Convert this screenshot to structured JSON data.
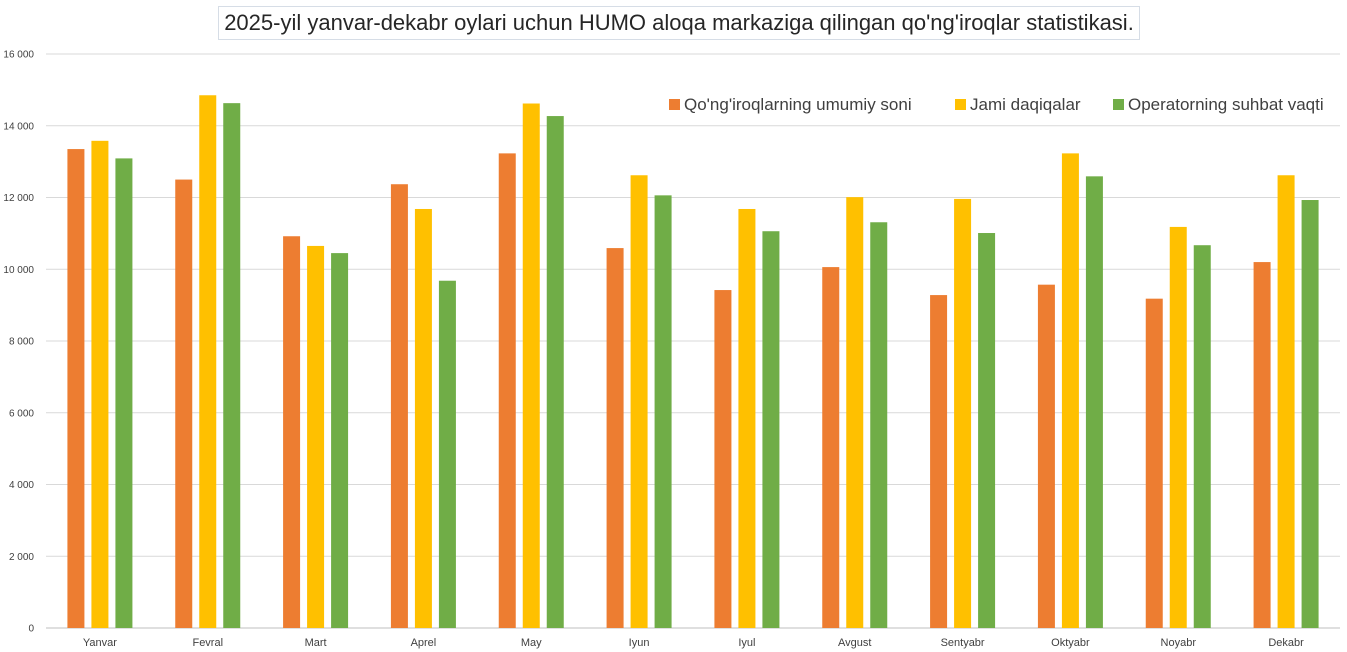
{
  "chart_data": {
    "type": "bar",
    "title": "2025-yil yanvar-dekabr oylari uchun HUMO aloqa markaziga qilingan qo'ng'iroqlar statistikasi.",
    "xlabel": "",
    "ylabel": "",
    "ylim": [
      0,
      16000
    ],
    "yticks": [
      0,
      2000,
      4000,
      6000,
      8000,
      10000,
      12000,
      14000,
      16000
    ],
    "ytick_labels": [
      "0",
      "2 000",
      "4 000",
      "6 000",
      "8 000",
      "10 000",
      "12 000",
      "14 000",
      "16 000"
    ],
    "grid": true,
    "legend_position": "top-right",
    "categories": [
      "Yanvar",
      "Fevral",
      "Mart",
      "Aprel",
      "May",
      "Iyun",
      "Iyul",
      "Avgust",
      "Sentyabr",
      "Oktyabr",
      "Noyabr",
      "Dekabr"
    ],
    "series": [
      {
        "name": "Qo'ng'iroqlarning umumiy soni",
        "color": "#ED7D31",
        "values": [
          13350,
          12500,
          10920,
          12370,
          13230,
          10590,
          9420,
          10060,
          9280,
          9570,
          9180,
          10200
        ]
      },
      {
        "name": "Jami daqiqalar",
        "color": "#FFC000",
        "values": [
          13580,
          14850,
          10650,
          11680,
          14620,
          12620,
          11680,
          12010,
          11960,
          13230,
          11180,
          12620
        ]
      },
      {
        "name": "Operatorning suhbat vaqti",
        "color": "#70AD47",
        "values": [
          13090,
          14630,
          10450,
          9680,
          14270,
          12060,
          11060,
          11310,
          11010,
          12590,
          10670,
          11930
        ]
      }
    ]
  }
}
